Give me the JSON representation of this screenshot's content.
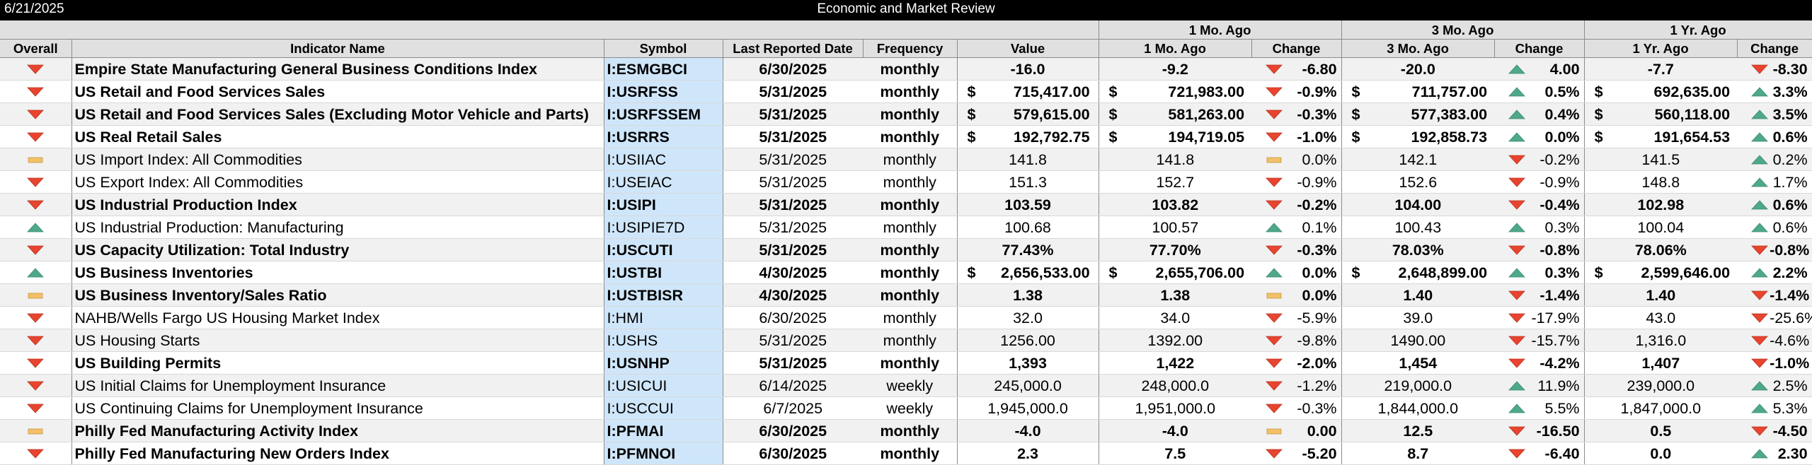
{
  "header": {
    "date": "6/21/2025",
    "title": "Economic and Market Review"
  },
  "groups": {
    "mo1": "1 Mo. Ago",
    "mo3": "3 Mo. Ago",
    "yr1": "1 Yr. Ago"
  },
  "columns": {
    "overall": "Overall",
    "name": "Indicator Name",
    "symbol": "Symbol",
    "last_reported": "Last Reported Date",
    "frequency": "Frequency",
    "value": "Value",
    "mo1": "1 Mo. Ago",
    "mo1_change": "Change",
    "mo3": "3 Mo. Ago",
    "mo3_change": "Change",
    "yr1": "1 Yr. Ago",
    "yr1_change": "Change"
  },
  "colors": {
    "down": "#e8442f",
    "up": "#4ea88a",
    "flat": "#f2c069",
    "symbol_bg": "#cfe6fa",
    "header_bg": "#e0e0e0"
  },
  "rows": [
    {
      "overall": "down",
      "bold": true,
      "name": "Empire State Manufacturing General Business Conditions Index",
      "symbol": "I:ESMGBCI",
      "date": "6/30/2025",
      "freq": "monthly",
      "value": "-16.0",
      "m1": "-9.2",
      "m1c": "-6.80",
      "m1i": "down",
      "m3": "-20.0",
      "m3c": "4.00",
      "m3i": "up",
      "y1": "-7.7",
      "y1c": "-8.30",
      "y1i": "down"
    },
    {
      "overall": "down",
      "bold": true,
      "name": "US Retail and Food Services Sales",
      "symbol": "I:USRFSS",
      "date": "5/31/2025",
      "freq": "monthly",
      "cur": "$",
      "value": "715,417.00",
      "m1cur": "$",
      "m1": "721,983.00",
      "m1c": "-0.9%",
      "m1i": "down",
      "m3cur": "$",
      "m3": "711,757.00",
      "m3c": "0.5%",
      "m3i": "up",
      "y1cur": "$",
      "y1": "692,635.00",
      "y1c": "3.3%",
      "y1i": "up"
    },
    {
      "overall": "down",
      "bold": true,
      "name": "US Retail and Food Services Sales (Excluding Motor Vehicle and Parts)",
      "symbol": "I:USRFSSEM",
      "date": "5/31/2025",
      "freq": "monthly",
      "cur": "$",
      "value": "579,615.00",
      "m1cur": "$",
      "m1": "581,263.00",
      "m1c": "-0.3%",
      "m1i": "down",
      "m3cur": "$",
      "m3": "577,383.00",
      "m3c": "0.4%",
      "m3i": "up",
      "y1cur": "$",
      "y1": "560,118.00",
      "y1c": "3.5%",
      "y1i": "up"
    },
    {
      "overall": "down",
      "bold": true,
      "allbold": true,
      "name": "US Real Retail Sales",
      "symbol": "I:USRRS",
      "date": "5/31/2025",
      "freq": "monthly",
      "cur": "$",
      "value": "192,792.75",
      "m1cur": "$",
      "m1": "194,719.05",
      "m1c": "-1.0%",
      "m1i": "down",
      "m3cur": "$",
      "m3": "192,858.73",
      "m3c": "0.0%",
      "m3i": "up",
      "y1cur": "$",
      "y1": "191,654.53",
      "y1c": "0.6%",
      "y1i": "up"
    },
    {
      "overall": "flat",
      "bold": false,
      "name": "US Import Index: All Commodities",
      "symbol": "I:USIIAC",
      "date": "5/31/2025",
      "freq": "monthly",
      "value": "141.8",
      "m1": "141.8",
      "m1c": "0.0%",
      "m1i": "flat",
      "m3": "142.1",
      "m3c": "-0.2%",
      "m3i": "down",
      "y1": "141.5",
      "y1c": "0.2%",
      "y1i": "up"
    },
    {
      "overall": "down",
      "bold": false,
      "name": "US Export Index: All Commodities",
      "symbol": "I:USEIAC",
      "date": "5/31/2025",
      "freq": "monthly",
      "value": "151.3",
      "m1": "152.7",
      "m1c": "-0.9%",
      "m1i": "down",
      "m3": "152.6",
      "m3c": "-0.9%",
      "m3i": "down",
      "y1": "148.8",
      "y1c": "1.7%",
      "y1i": "up"
    },
    {
      "overall": "down",
      "bold": true,
      "name": "US Industrial Production Index",
      "symbol": "I:USIPI",
      "date": "5/31/2025",
      "freq": "monthly",
      "value": "103.59",
      "m1": "103.82",
      "m1c": "-0.2%",
      "m1i": "down",
      "m3": "104.00",
      "m3c": "-0.4%",
      "m3i": "down",
      "y1": "102.98",
      "y1c": "0.6%",
      "y1i": "up"
    },
    {
      "overall": "up",
      "bold": false,
      "name": "US Industrial Production: Manufacturing",
      "symbol": "I:USIPIE7D",
      "date": "5/31/2025",
      "freq": "monthly",
      "value": "100.68",
      "m1": "100.57",
      "m1c": "0.1%",
      "m1i": "up",
      "m3": "100.43",
      "m3c": "0.3%",
      "m3i": "up",
      "y1": "100.04",
      "y1c": "0.6%",
      "y1i": "up"
    },
    {
      "overall": "down",
      "bold": true,
      "name": "US Capacity Utilization: Total Industry",
      "symbol": "I:USCUTI",
      "date": "5/31/2025",
      "freq": "monthly",
      "value": "77.43%",
      "m1": "77.70%",
      "m1c": "-0.3%",
      "m1i": "down",
      "m3": "78.03%",
      "m3c": "-0.8%",
      "m3i": "down",
      "y1": "78.06%",
      "y1c": "-0.8%",
      "y1i": "down"
    },
    {
      "overall": "up",
      "bold": true,
      "name": "US Business Inventories",
      "symbol": "I:USTBI",
      "date": "4/30/2025",
      "freq": "monthly",
      "cur": "$",
      "value": "2,656,533.00",
      "m1cur": "$",
      "m1": "2,655,706.00",
      "m1c": "0.0%",
      "m1i": "up",
      "m3cur": "$",
      "m3": "2,648,899.00",
      "m3c": "0.3%",
      "m3i": "up",
      "y1cur": "$",
      "y1": "2,599,646.00",
      "y1c": "2.2%",
      "y1i": "up"
    },
    {
      "overall": "flat",
      "bold": true,
      "name": "US Business Inventory/Sales Ratio",
      "symbol": "I:USTBISR",
      "date": "4/30/2025",
      "freq": "monthly",
      "value": "1.38",
      "m1": "1.38",
      "m1c": "0.0%",
      "m1i": "flat",
      "m3": "1.40",
      "m3c": "-1.4%",
      "m3i": "down",
      "y1": "1.40",
      "y1c": "-1.4%",
      "y1i": "down"
    },
    {
      "overall": "down",
      "bold": false,
      "name": "NAHB/Wells Fargo US Housing Market Index",
      "symbol": "I:HMI",
      "date": "6/30/2025",
      "freq": "monthly",
      "value": "32.0",
      "m1": "34.0",
      "m1c": "-5.9%",
      "m1i": "down",
      "m3": "39.0",
      "m3c": "-17.9%",
      "m3i": "down",
      "y1": "43.0",
      "y1c": "-25.6%",
      "y1i": "down"
    },
    {
      "overall": "down",
      "bold": false,
      "name": "US Housing Starts",
      "symbol": "I:USHS",
      "date": "5/31/2025",
      "freq": "monthly",
      "value": "1256.00",
      "m1": "1392.00",
      "m1c": "-9.8%",
      "m1i": "down",
      "m3": "1490.00",
      "m3c": "-15.7%",
      "m3i": "down",
      "y1": "1,316.0",
      "y1c": "-4.6%",
      "y1i": "down"
    },
    {
      "overall": "down",
      "bold": true,
      "name": "US Building Permits",
      "symbol": "I:USNHP",
      "date": "5/31/2025",
      "freq": "monthly",
      "value": "1,393",
      "m1": "1,422",
      "m1c": "-2.0%",
      "m1i": "down",
      "m3": "1,454",
      "m3c": "-4.2%",
      "m3i": "down",
      "y1": "1,407",
      "y1c": "-1.0%",
      "y1i": "down"
    },
    {
      "overall": "down",
      "bold": false,
      "name": "US Initial Claims for Unemployment Insurance",
      "symbol": "I:USICUI",
      "date": "6/14/2025",
      "freq": "weekly",
      "value": "245,000.0",
      "m1": "248,000.0",
      "m1c": "-1.2%",
      "m1i": "down",
      "m3": "219,000.0",
      "m3c": "11.9%",
      "m3i": "up",
      "y1": "239,000.0",
      "y1c": "2.5%",
      "y1i": "up"
    },
    {
      "overall": "down",
      "bold": false,
      "name": "US Continuing Claims for Unemployment Insurance",
      "symbol": "I:USCCUI",
      "date": "6/7/2025",
      "freq": "weekly",
      "value": "1,945,000.0",
      "m1": "1,951,000.0",
      "m1c": "-0.3%",
      "m1i": "down",
      "m3": "1,844,000.0",
      "m3c": "5.5%",
      "m3i": "up",
      "y1": "1,847,000.0",
      "y1c": "5.3%",
      "y1i": "up"
    },
    {
      "overall": "flat",
      "bold": true,
      "name": "Philly Fed Manufacturing Activity Index",
      "symbol": "I:PFMAI",
      "date": "6/30/2025",
      "freq": "monthly",
      "value": "-4.0",
      "m1": "-4.0",
      "m1c": "0.00",
      "m1i": "flat",
      "m3": "12.5",
      "m3c": "-16.50",
      "m3i": "down",
      "y1": "0.5",
      "y1c": "-4.50",
      "y1i": "down"
    },
    {
      "overall": "down",
      "bold": true,
      "name": "Philly Fed Manufacturing New Orders Index",
      "symbol": "I:PFMNOI",
      "date": "6/30/2025",
      "freq": "monthly",
      "value": "2.3",
      "m1": "7.5",
      "m1c": "-5.20",
      "m1i": "down",
      "m3": "8.7",
      "m3c": "-6.40",
      "m3i": "down",
      "y1": "0.0",
      "y1c": "2.30",
      "y1i": "up"
    }
  ]
}
